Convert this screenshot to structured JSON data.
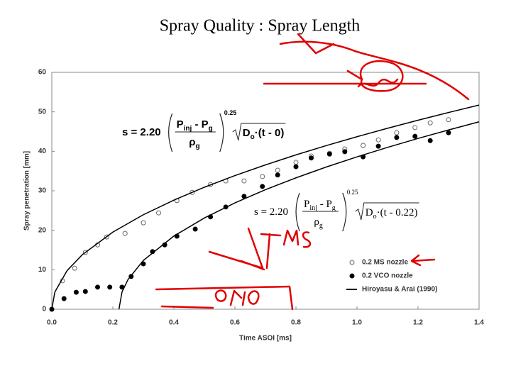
{
  "title": "Spray Quality : Spray Length",
  "chart_data": {
    "type": "scatter",
    "x_label": "Time ASOI [ms]",
    "y_label": "Spray penetration [mm]",
    "xlim": [
      0,
      1.4
    ],
    "ylim": [
      0,
      60
    ],
    "xticks": [
      {
        "value": 0,
        "label": "0.0"
      },
      0.2,
      0.4,
      0.6,
      0.8,
      {
        "value": 1,
        "label": "1.0"
      },
      1.2,
      1.4
    ],
    "yticks": [
      0,
      10,
      20,
      30,
      40,
      50,
      60
    ],
    "series": [
      {
        "name": "0.2 MS nozzle",
        "mode": "open-marker",
        "color": "#666666",
        "x": [
          0.035,
          0.075,
          0.11,
          0.15,
          0.18,
          0.24,
          0.3,
          0.35,
          0.41,
          0.46,
          0.52,
          0.57,
          0.63,
          0.69,
          0.74,
          0.8,
          0.85,
          0.91,
          0.96,
          1.02,
          1.07,
          1.13,
          1.19,
          1.24,
          1.3
        ],
        "values": [
          7.2,
          10.4,
          14.4,
          16.3,
          18.3,
          19.2,
          21.9,
          24.4,
          27.5,
          29.6,
          31.6,
          32.5,
          32.5,
          33.6,
          35.2,
          37.2,
          38.8,
          39.5,
          40.6,
          41.5,
          42.9,
          44.7,
          46,
          47.2,
          48
        ]
      },
      {
        "name": "0.2 VCO nozzle",
        "mode": "filled-marker",
        "color": "#000000",
        "x": [
          0,
          0.04,
          0.08,
          0.11,
          0.15,
          0.19,
          0.23,
          0.26,
          0.3,
          0.33,
          0.37,
          0.41,
          0.47,
          0.52,
          0.57,
          0.63,
          0.69,
          0.74,
          0.8,
          0.85,
          0.91,
          0.96,
          1.02,
          1.07,
          1.13,
          1.19,
          1.24,
          1.3
        ],
        "values": [
          0,
          2.7,
          4.3,
          4.5,
          5.6,
          5.6,
          5.6,
          8.3,
          11.5,
          14.6,
          16.3,
          18.5,
          20.3,
          23.4,
          25.9,
          28.6,
          31.1,
          34,
          36.1,
          38.3,
          39.3,
          39.9,
          38.6,
          41.3,
          43.5,
          43.8,
          42.7,
          44.7
        ]
      },
      {
        "name": "Hiroyasu & Arai (1990)",
        "mode": "line",
        "color": "#000000",
        "x": [
          0,
          0.01,
          0.05,
          0.1,
          0.2,
          0.3,
          0.4,
          0.5,
          0.6,
          0.7,
          0.8,
          0.9,
          1,
          1.1,
          1.2,
          1.3,
          1.4
        ],
        "values": [
          0,
          4.37,
          9.77,
          13.82,
          19.54,
          23.94,
          27.64,
          30.9,
          33.85,
          36.56,
          39.09,
          41.46,
          43.7,
          45.83,
          47.87,
          49.83,
          51.71
        ]
      },
      {
        "mode": "line",
        "color": "#000000",
        "x": [
          0.22,
          0.23,
          0.25,
          0.3,
          0.4,
          0.5,
          0.6,
          0.7,
          0.8,
          0.9,
          1,
          1.1,
          1.2,
          1.3,
          1.4
        ],
        "values": [
          0,
          4.37,
          7.57,
          12.36,
          18.54,
          23.12,
          26.94,
          30.28,
          33.28,
          36.04,
          38.59,
          40.99,
          43.26,
          45.41,
          47.47
        ]
      }
    ],
    "equations": [
      {
        "lhs": "s = 2.20",
        "numerator": [
          "P",
          "inj",
          " - P",
          "g"
        ],
        "denominator": [
          "ρ",
          "g"
        ],
        "exponent": "0.25",
        "root": [
          "D",
          "o",
          "·(t - 0)"
        ]
      },
      {
        "lhs": "s = 2.20",
        "numerator": [
          "P",
          "inj",
          " - P",
          "g"
        ],
        "denominator": [
          "ρ",
          "g"
        ],
        "exponent": "0.25",
        "root": [
          "D",
          "o",
          "·(t - 0.22)"
        ]
      }
    ]
  }
}
